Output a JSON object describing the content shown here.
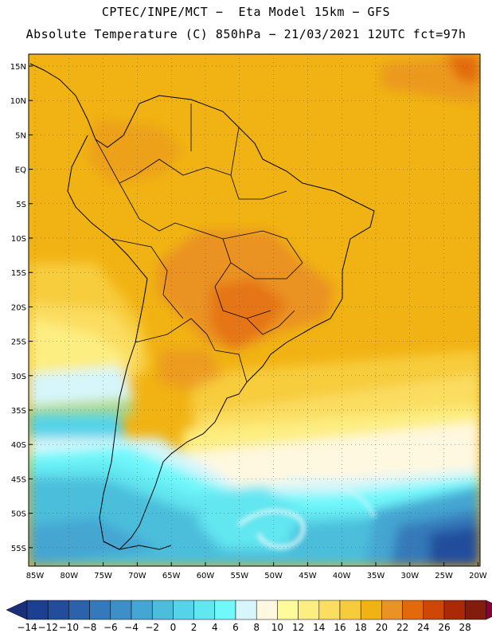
{
  "header": {
    "line1": "CPTEC/INPE/MCT −  Eta Model 15km − GFS",
    "line2": "Absolute Temperature (C) 850hPa − 21/03/2021 12UTC fct=97h"
  },
  "map": {
    "lat_labels": [
      "15N",
      "10N",
      "5N",
      "EQ",
      "5S",
      "10S",
      "15S",
      "20S",
      "25S",
      "30S",
      "35S",
      "40S",
      "45S",
      "50S",
      "55S"
    ],
    "lon_labels": [
      "85W",
      "80W",
      "75W",
      "70W",
      "65W",
      "60W",
      "55W",
      "50W",
      "45W",
      "40W",
      "35W",
      "30W",
      "25W",
      "20W"
    ]
  },
  "colorbar": {
    "labels": [
      "−14",
      "−12",
      "−10",
      "−8",
      "−6",
      "−4",
      "−2",
      "0",
      "2",
      "4",
      "6",
      "8",
      "10",
      "12",
      "14",
      "16",
      "18",
      "20",
      "22",
      "24",
      "26",
      "28"
    ],
    "colors": [
      "#1c3f8f",
      "#224d9c",
      "#2c62ab",
      "#3479b9",
      "#3d90c7",
      "#44a6d2",
      "#4cbedb",
      "#55d3e8",
      "#62e6f0",
      "#70f8fb",
      "#d6f6fb",
      "#fff8e0",
      "#fffb9a",
      "#fdee82",
      "#fbdd60",
      "#f7cc3c",
      "#f1b313",
      "#ea9223",
      "#e36a0c",
      "#cf4705",
      "#ac2907",
      "#841c0d"
    ],
    "low_end_color": "#1a2e7a",
    "high_end_color": "#8b0034"
  }
}
